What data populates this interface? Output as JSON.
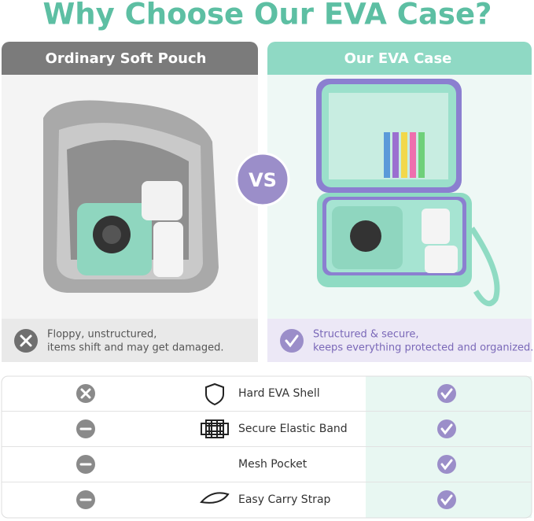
{
  "title": "Why Choose Our EVA Case?",
  "left": {
    "header": "Ordinary Soft Pouch",
    "caption": [
      "Floppy, unstructured,",
      "items shift and may get damaged."
    ]
  },
  "vs": "VS",
  "right": {
    "header": "Our EVA Case",
    "caption": [
      "Structured & secure,",
      "keeps everything protected and organized."
    ]
  },
  "table": {
    "rows": [
      "Hard EVA Shell",
      "Secure Elastic Band",
      "Mesh Pocket",
      "Easy Carry Strap"
    ]
  }
}
